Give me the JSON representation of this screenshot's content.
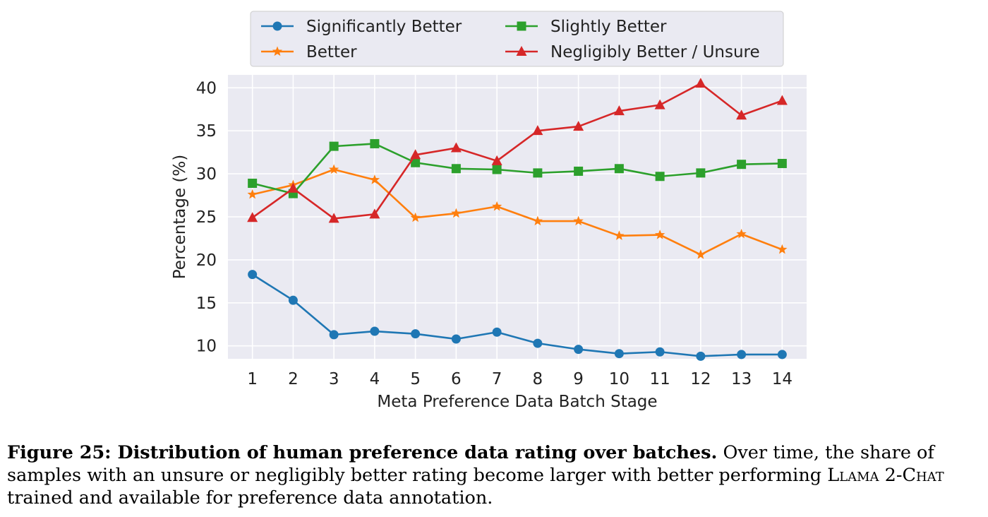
{
  "chart_data": {
    "type": "line",
    "xlabel": "Meta Preference Data Batch Stage",
    "ylabel": "Percentage (%)",
    "x": [
      1,
      2,
      3,
      4,
      5,
      6,
      7,
      8,
      9,
      10,
      11,
      12,
      13,
      14
    ],
    "xlim": [
      0.4,
      14.6
    ],
    "ylim": [
      8.5,
      41.5
    ],
    "yticks": [
      10,
      15,
      20,
      25,
      30,
      35,
      40
    ],
    "grid": true,
    "legend_position": "top-center",
    "series": [
      {
        "name": "Significantly Better",
        "color": "#1f77b4",
        "marker": "circle",
        "values": [
          18.3,
          15.3,
          11.3,
          11.7,
          11.4,
          10.8,
          11.6,
          10.3,
          9.6,
          9.1,
          9.3,
          8.8,
          9.0,
          9.0
        ]
      },
      {
        "name": "Better",
        "color": "#ff7f0e",
        "marker": "star",
        "values": [
          27.6,
          28.7,
          30.5,
          29.3,
          24.9,
          25.4,
          26.2,
          24.5,
          24.5,
          22.8,
          22.9,
          20.6,
          23.0,
          21.2
        ]
      },
      {
        "name": "Slightly Better",
        "color": "#2ca02c",
        "marker": "square",
        "values": [
          28.9,
          27.7,
          33.2,
          33.5,
          31.3,
          30.6,
          30.5,
          30.1,
          30.3,
          30.6,
          29.7,
          30.1,
          31.1,
          31.2
        ]
      },
      {
        "name": "Negligibly Better / Unsure",
        "color": "#d62728",
        "marker": "triangle",
        "values": [
          24.9,
          28.3,
          24.8,
          25.3,
          32.2,
          33.0,
          31.5,
          35.0,
          35.5,
          37.3,
          38.0,
          40.5,
          36.8,
          38.5
        ]
      }
    ]
  },
  "caption": {
    "figure_label": "Figure 25: Distribution of human preference data rating over batches.",
    "text_part1": " Over time, the share of samples with an unsure or negligibly better rating become larger with better performing ",
    "model_name": "Llama 2-Chat",
    "text_part2": " trained and available for preference data annotation."
  }
}
